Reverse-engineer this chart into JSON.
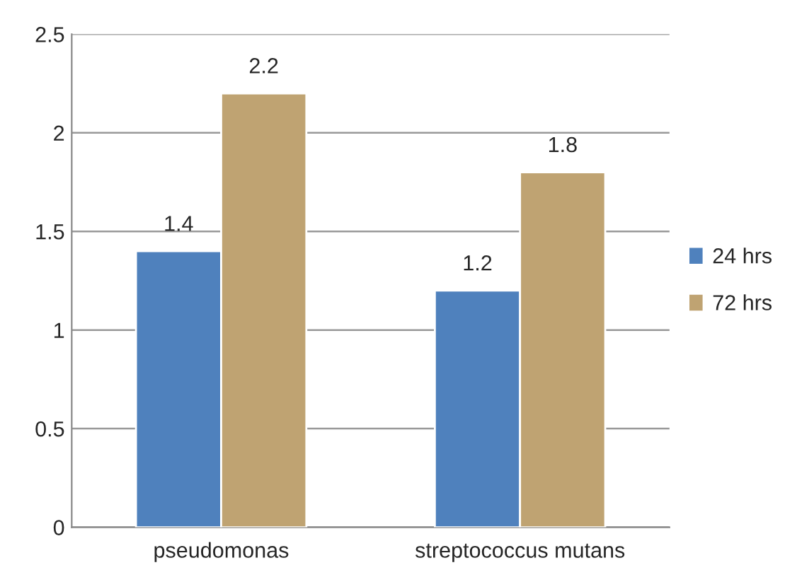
{
  "chart_data": {
    "type": "bar",
    "categories": [
      "pseudomonas",
      "streptococcus mutans"
    ],
    "series": [
      {
        "name": "24 hrs",
        "color": "#4f81bd",
        "values": [
          1.4,
          1.2
        ]
      },
      {
        "name": "72 hrs",
        "color": "#bfa372",
        "values": [
          2.2,
          1.8
        ]
      }
    ],
    "ylim": [
      0,
      2.5
    ],
    "yticks": [
      0,
      0.5,
      1,
      1.5,
      2,
      2.5
    ],
    "grid": "y",
    "legend": "right",
    "data_labels": true
  }
}
